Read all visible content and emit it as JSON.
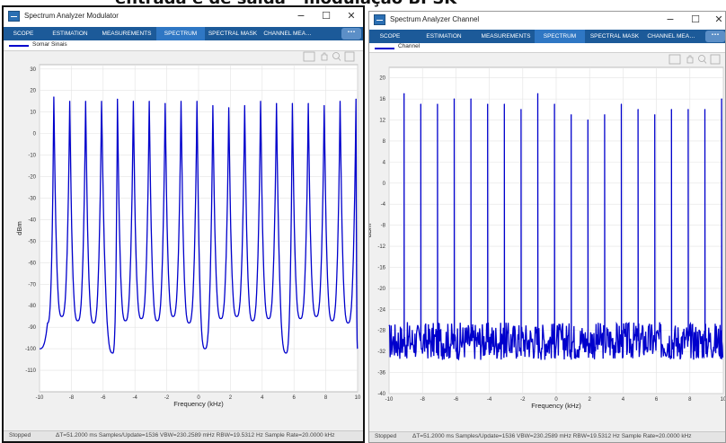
{
  "page_title": "entrada e de saída - modulação BPSK",
  "window_controls": {
    "minimize": "−",
    "maximize": "☐",
    "close": "✕"
  },
  "windows": [
    {
      "title": "Spectrum Analyzer Modulator",
      "tabs": [
        "SCOPE",
        "ESTIMATION",
        "MEASUREMENTS",
        "SPECTRUM",
        "SPECTRAL MASK",
        "CHANNEL MEA…"
      ],
      "active_tab": "SPECTRUM",
      "more_label": "···",
      "legend": "Somar Sinais",
      "status": {
        "state": "Stopped",
        "info": "ΔT=51.2000 ms  Samples/Update=1536  VBW=230.2589 mHz  RBW=19.5312 Hz  Sample Rate=20.0000 kHz"
      },
      "toolbar_icons": [
        "zoom-box-icon",
        "pan-hand-icon",
        "zoom-in-icon",
        "fit-to-view-icon"
      ]
    },
    {
      "title": "Spectrum Analyzer Channel",
      "tabs": [
        "SCOPE",
        "ESTIMATION",
        "MEASUREMENTS",
        "SPECTRUM",
        "SPECTRAL MASK",
        "CHANNEL MEA…"
      ],
      "active_tab": "SPECTRUM",
      "more_label": "···",
      "legend": "Channel",
      "status": {
        "state": "Stopped",
        "info": "ΔT=51.2000 ms  Samples/Update=1536  VBW=230.2589 mHz  RBW=19.5312 Hz  Sample Rate=20.0000 kHz"
      },
      "toolbar_icons": [
        "zoom-box-icon",
        "pan-hand-icon",
        "zoom-in-icon",
        "fit-to-view-icon"
      ]
    }
  ],
  "chart_data": [
    {
      "type": "line",
      "xlabel": "Frequency (kHz)",
      "ylabel": "dBm",
      "xlim": [
        -10,
        10
      ],
      "ylim": [
        -120,
        32
      ],
      "xticks": [
        -10,
        -8,
        -6,
        -4,
        -2,
        0,
        2,
        4,
        6,
        8,
        10
      ],
      "yticks": [
        30,
        20,
        10,
        0,
        -10,
        -20,
        -30,
        -40,
        -50,
        -60,
        -70,
        -80,
        -90,
        -100,
        -110
      ],
      "grid": true,
      "legend_position": "top-left",
      "series": [
        {
          "name": "Somar Sinais",
          "color": "#0000cc",
          "peaks_x": [
            -9.1,
            -8.1,
            -7.1,
            -6.1,
            -5.1,
            -4.1,
            -3.1,
            -2.1,
            -1.1,
            -0.1,
            0.9,
            1.9,
            2.9,
            3.9,
            4.9,
            5.9,
            6.9,
            7.9,
            8.9,
            9.9
          ],
          "peaks_y": [
            17,
            15,
            15,
            15,
            16,
            15,
            15,
            14,
            15,
            15,
            13,
            12,
            13,
            15,
            14,
            14,
            14,
            13,
            15,
            16
          ],
          "troughs_x": [
            -10,
            -9.5,
            -8.6,
            -7.6,
            -6.6,
            -5.4,
            -4.6,
            -3.6,
            -2.6,
            -1.6,
            -0.6,
            0.4,
            1.4,
            2.4,
            3.4,
            4.4,
            5.5,
            6.4,
            7.4,
            8.4,
            9.4,
            10
          ],
          "troughs_y": [
            -100,
            -88,
            -85,
            -87,
            -88,
            -102,
            -87,
            -86,
            -87,
            -85,
            -88,
            -100,
            -86,
            -85,
            -87,
            -86,
            -102,
            -86,
            -85,
            -87,
            -88,
            -100
          ]
        }
      ]
    },
    {
      "type": "line",
      "xlabel": "Frequency (kHz)",
      "ylabel": "dBm",
      "xlim": [
        -10,
        10
      ],
      "ylim": [
        -40,
        22
      ],
      "xticks": [
        -10,
        -8,
        -6,
        -4,
        -2,
        0,
        2,
        4,
        6,
        8,
        10
      ],
      "yticks": [
        20,
        16,
        12,
        8,
        4,
        0,
        -4,
        -8,
        -12,
        -16,
        -20,
        -24,
        -28,
        -32,
        -36,
        -40
      ],
      "grid": true,
      "legend_position": "top-left",
      "series": [
        {
          "name": "Channel",
          "color": "#0000cc",
          "noise_floor": -30,
          "noise_range": [
            -34,
            -26
          ],
          "peaks_x": [
            -9.1,
            -8.1,
            -7.1,
            -6.1,
            -5.1,
            -4.1,
            -3.1,
            -2.1,
            -1.1,
            -0.1,
            0.9,
            1.9,
            2.9,
            3.9,
            4.9,
            5.9,
            6.9,
            7.9,
            8.9,
            9.9
          ],
          "peaks_y": [
            17,
            15,
            15,
            16,
            16,
            15,
            15,
            14,
            17,
            15,
            13,
            12,
            13,
            15,
            14,
            13,
            14,
            14,
            14,
            16
          ]
        }
      ]
    }
  ]
}
